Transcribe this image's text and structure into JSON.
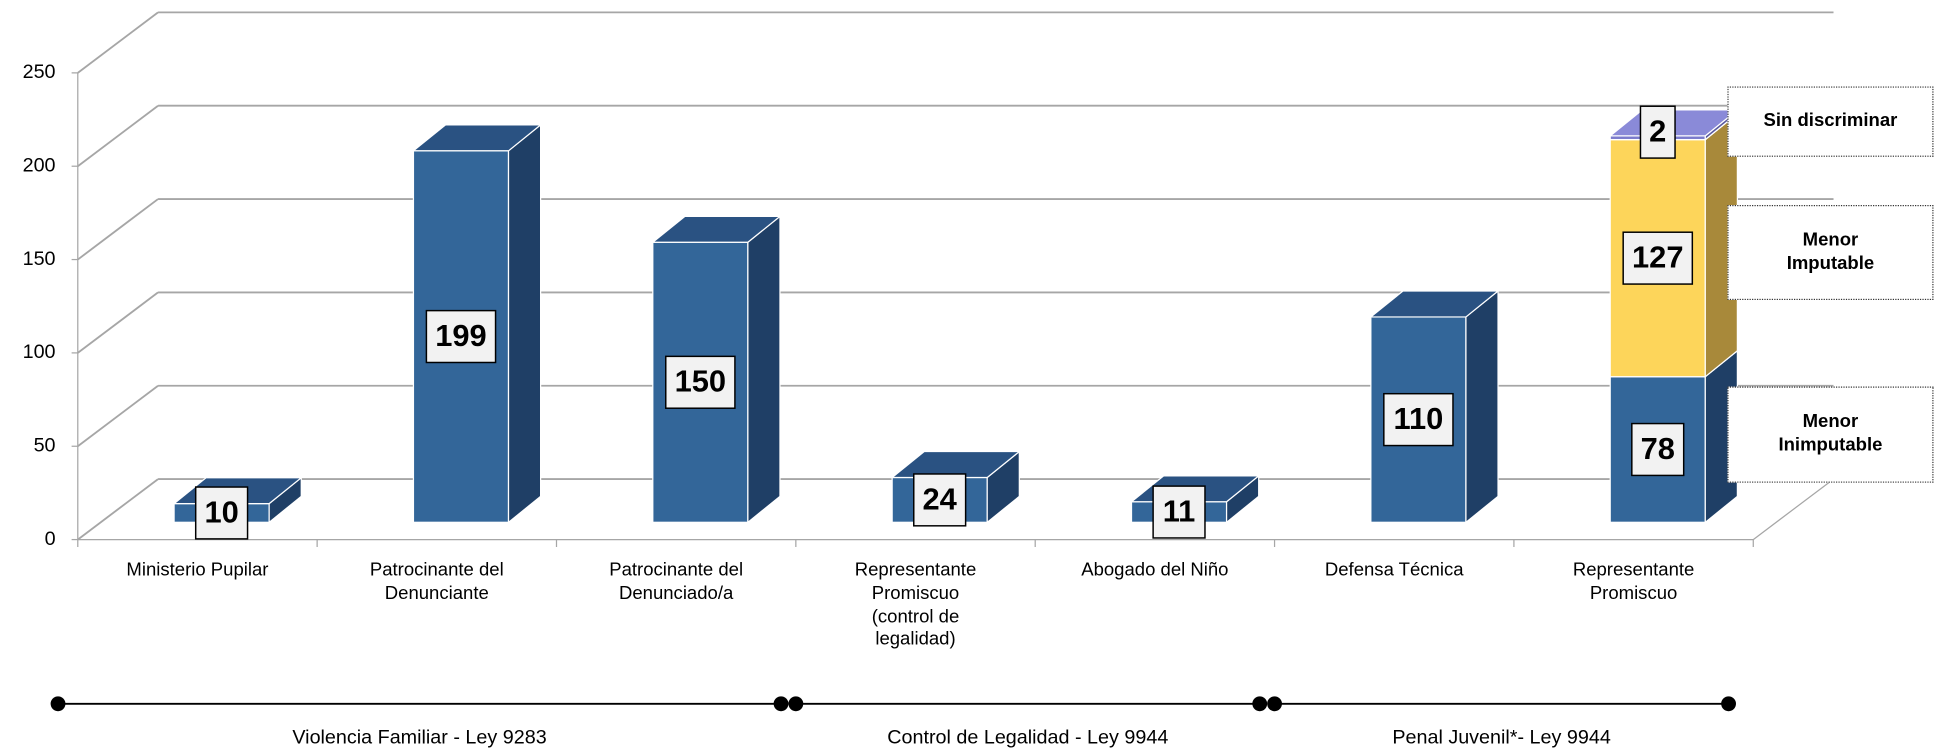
{
  "chart_data": {
    "type": "bar3d_stacked",
    "categories": [
      "Ministerio Pupilar",
      "Patrocinante del\nDenunciante",
      "Patrocinante del\nDenunciado/a",
      "Representante\nPromiscuo\n(control de\nlegalidad)",
      "Abogado del Niño",
      "Defensa  Técnica",
      "Representante\nPromiscuo"
    ],
    "series": [
      {
        "name": "Menor\nInimputable",
        "color": "#336699",
        "side": "#1f3f66",
        "top": "#2a5282",
        "values": [
          10,
          199,
          150,
          24,
          11,
          110,
          78
        ]
      },
      {
        "name": "Menor\nImputable",
        "color": "#fdd55a",
        "side": "#a8893a",
        "top": "#e8c24a",
        "values": [
          null,
          null,
          null,
          null,
          null,
          null,
          127
        ]
      },
      {
        "name": "Sin discriminar",
        "color": "#7b7bcc",
        "side": "#5a5aa0",
        "top": "#8a8ad8",
        "values": [
          null,
          null,
          null,
          null,
          null,
          null,
          2
        ]
      }
    ],
    "groups": [
      {
        "label": "Violencia Familiar - Ley 9283",
        "from": 0,
        "to": 2
      },
      {
        "label": "Control de Legalidad - Ley 9944",
        "from": 3,
        "to": 4
      },
      {
        "label": "Penal Juvenil*- Ley 9944",
        "from": 5,
        "to": 6
      }
    ],
    "ylim": [
      0,
      250
    ],
    "yticks": [
      0,
      50,
      100,
      150,
      200,
      250
    ],
    "grid": true
  }
}
